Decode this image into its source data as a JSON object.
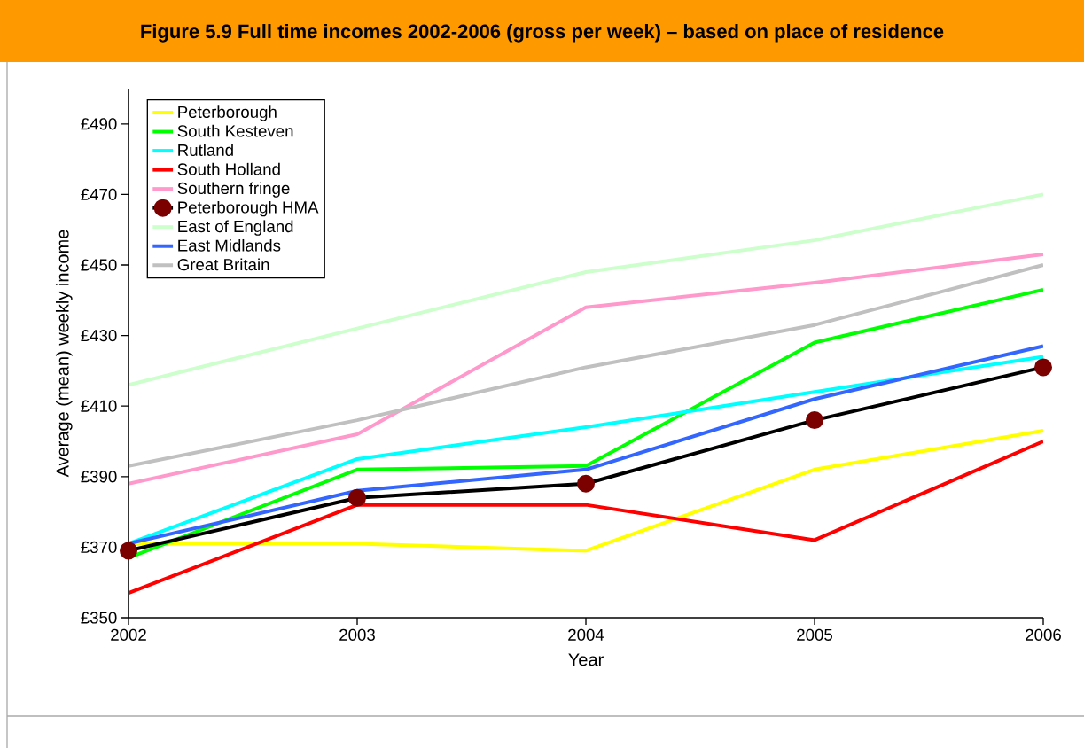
{
  "chart_data": {
    "type": "line",
    "title": "Figure 5.9 Full time incomes 2002-2006 (gross per week) – based on place of residence",
    "xlabel": "Year",
    "ylabel": "Average (mean) weekly income",
    "categories": [
      "2002",
      "2003",
      "2004",
      "2005",
      "2006"
    ],
    "ylim": [
      350,
      500
    ],
    "yticks": [
      {
        "value": 350,
        "label": "£350"
      },
      {
        "value": 370,
        "label": "£370"
      },
      {
        "value": 390,
        "label": "£390"
      },
      {
        "value": 410,
        "label": "£410"
      },
      {
        "value": 430,
        "label": "£430"
      },
      {
        "value": 450,
        "label": "£450"
      },
      {
        "value": 470,
        "label": "£470"
      },
      {
        "value": 490,
        "label": "£490"
      }
    ],
    "grid": false,
    "legend": "top left",
    "marker": "none",
    "line_style": "solid",
    "series": [
      {
        "name": "Peterborough",
        "color": "#ffff00",
        "values": [
          371,
          371,
          369,
          392,
          403
        ]
      },
      {
        "name": "South Kesteven",
        "color": "#00ff00",
        "values": [
          367,
          392,
          393,
          428,
          443
        ]
      },
      {
        "name": "Rutland",
        "color": "#00ffff",
        "values": [
          371,
          395,
          404,
          414,
          424
        ]
      },
      {
        "name": "South Holland",
        "color": "#ff0000",
        "values": [
          357,
          382,
          382,
          372,
          400
        ]
      },
      {
        "name": "Southern fringe",
        "color": "#ff99cc",
        "values": [
          388,
          402,
          438,
          445,
          453
        ]
      },
      {
        "name": "Peterborough HMA",
        "color": "#000000",
        "marker": "circle",
        "values": [
          369,
          384,
          388,
          406,
          421
        ]
      },
      {
        "name": "East of England",
        "color": "#ccffcc",
        "values": [
          416,
          432,
          448,
          457,
          470
        ]
      },
      {
        "name": "East Midlands",
        "color": "#3366ff",
        "values": [
          371,
          386,
          392,
          412,
          427
        ]
      },
      {
        "name": "Great Britain",
        "color": "#c0c0c0",
        "values": [
          393,
          406,
          421,
          433,
          450
        ]
      }
    ]
  }
}
